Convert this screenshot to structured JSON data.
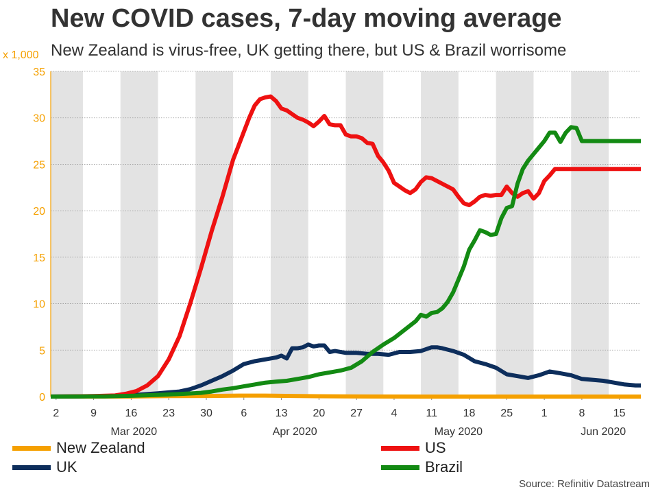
{
  "chart_data": {
    "type": "line",
    "title": "New COVID cases, 7-day moving average",
    "subtitle": "New Zealand is virus-free, UK getting there, but US & Brazil worrisome",
    "y_unit_label": "x 1,000",
    "ylim": [
      0,
      35
    ],
    "y_ticks": [
      0,
      5,
      10,
      15,
      20,
      25,
      30,
      35
    ],
    "x_range": [
      "2020-03-01",
      "2020-06-18"
    ],
    "x_ticks": [
      {
        "day": 1,
        "label": "2"
      },
      {
        "day": 8,
        "label": "9"
      },
      {
        "day": 15,
        "label": "16"
      },
      {
        "day": 22,
        "label": "23"
      },
      {
        "day": 29,
        "label": "30"
      },
      {
        "day": 36,
        "label": "6"
      },
      {
        "day": 43,
        "label": "13"
      },
      {
        "day": 50,
        "label": "20"
      },
      {
        "day": 57,
        "label": "27"
      },
      {
        "day": 64,
        "label": "4"
      },
      {
        "day": 71,
        "label": "11"
      },
      {
        "day": 78,
        "label": "18"
      },
      {
        "day": 85,
        "label": "25"
      },
      {
        "day": 92,
        "label": "1"
      },
      {
        "day": 99,
        "label": "8"
      },
      {
        "day": 106,
        "label": "15"
      }
    ],
    "month_labels": [
      {
        "day": 15.5,
        "label": "Mar 2020"
      },
      {
        "day": 45.5,
        "label": "Apr 2020"
      },
      {
        "day": 76,
        "label": "May 2020"
      },
      {
        "day": 103,
        "label": "Jun 2020"
      }
    ],
    "shaded_weeks_start_days": [
      -1,
      13,
      27,
      41,
      55,
      69,
      83,
      97,
      111
    ],
    "week_span_days": 7,
    "x_day_max": 110,
    "grid": true,
    "series": [
      {
        "name": "New Zealand",
        "color": "#f5a000",
        "points": [
          [
            0,
            0
          ],
          [
            15,
            0.01
          ],
          [
            22,
            0.05
          ],
          [
            30,
            0.07
          ],
          [
            35,
            0.1
          ],
          [
            40,
            0.1
          ],
          [
            45,
            0.07
          ],
          [
            50,
            0.04
          ],
          [
            60,
            0.01
          ],
          [
            70,
            0
          ],
          [
            110,
            0
          ]
        ]
      },
      {
        "name": "UK",
        "color": "#0d2e5c",
        "points": [
          [
            0,
            0.01
          ],
          [
            5,
            0.02
          ],
          [
            10,
            0.05
          ],
          [
            15,
            0.15
          ],
          [
            20,
            0.35
          ],
          [
            22,
            0.45
          ],
          [
            24,
            0.55
          ],
          [
            26,
            0.8
          ],
          [
            28,
            1.2
          ],
          [
            30,
            1.7
          ],
          [
            32,
            2.2
          ],
          [
            34,
            2.8
          ],
          [
            36,
            3.5
          ],
          [
            38,
            3.8
          ],
          [
            40,
            4.0
          ],
          [
            42,
            4.2
          ],
          [
            43,
            4.4
          ],
          [
            44,
            4.1
          ],
          [
            45,
            5.2
          ],
          [
            46,
            5.2
          ],
          [
            47,
            5.3
          ],
          [
            48,
            5.6
          ],
          [
            49,
            5.4
          ],
          [
            50,
            5.5
          ],
          [
            51,
            5.5
          ],
          [
            52,
            4.8
          ],
          [
            53,
            4.9
          ],
          [
            55,
            4.7
          ],
          [
            57,
            4.7
          ],
          [
            59,
            4.6
          ],
          [
            61,
            4.6
          ],
          [
            63,
            4.5
          ],
          [
            65,
            4.8
          ],
          [
            67,
            4.8
          ],
          [
            69,
            4.9
          ],
          [
            71,
            5.3
          ],
          [
            72,
            5.3
          ],
          [
            73,
            5.2
          ],
          [
            75,
            4.9
          ],
          [
            77,
            4.5
          ],
          [
            79,
            3.8
          ],
          [
            81,
            3.5
          ],
          [
            83,
            3.1
          ],
          [
            85,
            2.4
          ],
          [
            87,
            2.2
          ],
          [
            89,
            2.0
          ],
          [
            91,
            2.3
          ],
          [
            93,
            2.7
          ],
          [
            95,
            2.5
          ],
          [
            97,
            2.3
          ],
          [
            99,
            1.9
          ],
          [
            101,
            1.8
          ],
          [
            103,
            1.7
          ],
          [
            105,
            1.5
          ],
          [
            107,
            1.3
          ],
          [
            109,
            1.2
          ],
          [
            110,
            1.2
          ]
        ]
      },
      {
        "name": "US",
        "color": "#ee1111",
        "points": [
          [
            0,
            0
          ],
          [
            8,
            0.05
          ],
          [
            12,
            0.12
          ],
          [
            14,
            0.3
          ],
          [
            16,
            0.6
          ],
          [
            18,
            1.2
          ],
          [
            20,
            2.2
          ],
          [
            22,
            4.0
          ],
          [
            24,
            6.5
          ],
          [
            26,
            10.0
          ],
          [
            28,
            13.8
          ],
          [
            30,
            17.8
          ],
          [
            32,
            21.5
          ],
          [
            34,
            25.5
          ],
          [
            35,
            27.0
          ],
          [
            36,
            28.5
          ],
          [
            37,
            30.0
          ],
          [
            38,
            31.3
          ],
          [
            39,
            32.0
          ],
          [
            40,
            32.2
          ],
          [
            41,
            32.3
          ],
          [
            42,
            31.8
          ],
          [
            43,
            31.0
          ],
          [
            44,
            30.8
          ],
          [
            45,
            30.4
          ],
          [
            46,
            30.0
          ],
          [
            47,
            29.8
          ],
          [
            48,
            29.5
          ],
          [
            49,
            29.1
          ],
          [
            50,
            29.6
          ],
          [
            51,
            30.2
          ],
          [
            52,
            29.3
          ],
          [
            53,
            29.2
          ],
          [
            54,
            29.2
          ],
          [
            55,
            28.2
          ],
          [
            56,
            28.0
          ],
          [
            57,
            28.0
          ],
          [
            58,
            27.8
          ],
          [
            59,
            27.3
          ],
          [
            60,
            27.2
          ],
          [
            61,
            25.9
          ],
          [
            62,
            25.2
          ],
          [
            63,
            24.3
          ],
          [
            64,
            23.0
          ],
          [
            65,
            22.6
          ],
          [
            66,
            22.2
          ],
          [
            67,
            21.9
          ],
          [
            68,
            22.3
          ],
          [
            69,
            23.1
          ],
          [
            70,
            23.6
          ],
          [
            71,
            23.5
          ],
          [
            72,
            23.2
          ],
          [
            73,
            22.9
          ],
          [
            74,
            22.6
          ],
          [
            75,
            22.3
          ],
          [
            76,
            21.5
          ],
          [
            77,
            20.8
          ],
          [
            78,
            20.6
          ],
          [
            79,
            21.0
          ],
          [
            80,
            21.5
          ],
          [
            81,
            21.7
          ],
          [
            82,
            21.6
          ],
          [
            83,
            21.7
          ],
          [
            84,
            21.7
          ],
          [
            85,
            22.6
          ],
          [
            86,
            21.9
          ],
          [
            87,
            21.5
          ],
          [
            88,
            21.9
          ],
          [
            89,
            22.1
          ],
          [
            90,
            21.3
          ],
          [
            91,
            21.9
          ],
          [
            92,
            23.2
          ],
          [
            93,
            23.8
          ],
          [
            94,
            24.5
          ],
          [
            110,
            24.5
          ]
        ]
      },
      {
        "name": "Brazil",
        "color": "#138a13",
        "points": [
          [
            0,
            0
          ],
          [
            10,
            0.02
          ],
          [
            15,
            0.08
          ],
          [
            20,
            0.18
          ],
          [
            25,
            0.3
          ],
          [
            28,
            0.4
          ],
          [
            30,
            0.55
          ],
          [
            32,
            0.75
          ],
          [
            34,
            0.9
          ],
          [
            36,
            1.1
          ],
          [
            38,
            1.3
          ],
          [
            40,
            1.5
          ],
          [
            42,
            1.6
          ],
          [
            44,
            1.7
          ],
          [
            46,
            1.9
          ],
          [
            48,
            2.1
          ],
          [
            50,
            2.4
          ],
          [
            52,
            2.6
          ],
          [
            54,
            2.8
          ],
          [
            56,
            3.1
          ],
          [
            58,
            3.8
          ],
          [
            60,
            4.8
          ],
          [
            62,
            5.6
          ],
          [
            64,
            6.3
          ],
          [
            66,
            7.2
          ],
          [
            68,
            8.1
          ],
          [
            69,
            8.8
          ],
          [
            70,
            8.6
          ],
          [
            71,
            9.0
          ],
          [
            72,
            9.1
          ],
          [
            73,
            9.5
          ],
          [
            74,
            10.2
          ],
          [
            75,
            11.2
          ],
          [
            76,
            12.6
          ],
          [
            77,
            14.0
          ],
          [
            78,
            15.8
          ],
          [
            79,
            16.8
          ],
          [
            80,
            17.9
          ],
          [
            81,
            17.7
          ],
          [
            82,
            17.4
          ],
          [
            83,
            17.5
          ],
          [
            84,
            19.2
          ],
          [
            85,
            20.3
          ],
          [
            86,
            20.5
          ],
          [
            87,
            22.9
          ],
          [
            88,
            24.5
          ],
          [
            89,
            25.4
          ],
          [
            90,
            26.1
          ],
          [
            91,
            26.8
          ],
          [
            92,
            27.5
          ],
          [
            93,
            28.4
          ],
          [
            94,
            28.4
          ],
          [
            95,
            27.4
          ],
          [
            96,
            28.4
          ],
          [
            97,
            29.0
          ],
          [
            98,
            28.9
          ],
          [
            99,
            27.5
          ],
          [
            110,
            27.5
          ]
        ]
      }
    ],
    "legend": "bottom"
  },
  "source": "Source: Refinitiv Datastream"
}
